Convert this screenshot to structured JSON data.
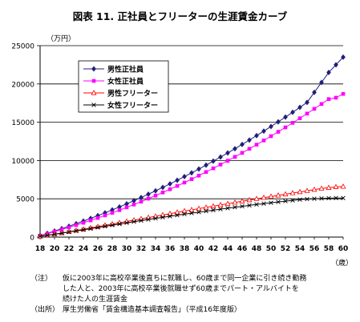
{
  "title": "図表 11.  正社員とフリーターの生涯賃金カーブ",
  "y_unit": "（万円）",
  "x_unit": "（歳）",
  "notes": {
    "label": "（注）",
    "line1": "仮に2003年に高校卒業後直ちに就職し、60歳まで同一企業に引き続き勤務",
    "line2": "した人と、2003年に高校卒業後就職せず60歳までパート・アルバイトを",
    "line3": "続けた人の生涯賃金",
    "source_label": "（出所）",
    "source": "厚生労働省「賃金構造基本調査報告」（平成16年度版）"
  },
  "chart_data": {
    "type": "line",
    "title": "図表 11.  正社員とフリーターの生涯賃金カーブ",
    "xlabel": "（歳）",
    "ylabel": "（万円）",
    "x": [
      18,
      19,
      20,
      21,
      22,
      23,
      24,
      25,
      26,
      27,
      28,
      29,
      30,
      31,
      32,
      33,
      34,
      35,
      36,
      37,
      38,
      39,
      40,
      41,
      42,
      43,
      44,
      45,
      46,
      47,
      48,
      49,
      50,
      51,
      52,
      53,
      54,
      55,
      56,
      57,
      58,
      59,
      60
    ],
    "xticks": [
      "18",
      "20",
      "22",
      "24",
      "26",
      "28",
      "30",
      "32",
      "34",
      "36",
      "38",
      "40",
      "42",
      "44",
      "46",
      "48",
      "50",
      "52",
      "54",
      "56",
      "58",
      "60"
    ],
    "ylim": [
      0,
      25000
    ],
    "yticks": [
      0,
      5000,
      10000,
      15000,
      20000,
      25000
    ],
    "grid": true,
    "legend_position": "top-left",
    "series": [
      {
        "name": "男性正社員",
        "color": "#1f1f7a",
        "marker": "diamond",
        "values": [
          200,
          490,
          790,
          1100,
          1420,
          1750,
          2090,
          2440,
          2800,
          3170,
          3550,
          3940,
          4340,
          4750,
          5170,
          5600,
          6040,
          6490,
          6950,
          7420,
          7900,
          8390,
          8890,
          9400,
          9920,
          10450,
          10990,
          11540,
          12100,
          12670,
          13250,
          13840,
          14440,
          15050,
          15670,
          16300,
          16940,
          17590,
          18900,
          20200,
          21500,
          22500,
          23500
        ]
      },
      {
        "name": "女性正社員",
        "color": "#ff00ff",
        "marker": "square",
        "values": [
          190,
          450,
          720,
          1000,
          1280,
          1570,
          1870,
          2180,
          2500,
          2830,
          3170,
          3520,
          3880,
          4250,
          4630,
          5020,
          5420,
          5830,
          6250,
          6680,
          7120,
          7570,
          8030,
          8500,
          8980,
          9470,
          9970,
          10480,
          11000,
          11530,
          12070,
          12620,
          13180,
          13750,
          14330,
          14920,
          15520,
          16130,
          16750,
          17380,
          18020,
          18200,
          18700
        ]
      },
      {
        "name": "男性フリーター",
        "color": "#ff0000",
        "marker": "triangle",
        "values": [
          100,
          240,
          390,
          540,
          700,
          860,
          1020,
          1190,
          1360,
          1530,
          1700,
          1870,
          2040,
          2210,
          2380,
          2550,
          2720,
          2890,
          3060,
          3230,
          3400,
          3560,
          3720,
          3880,
          4040,
          4200,
          4360,
          4520,
          4680,
          4840,
          5000,
          5150,
          5300,
          5450,
          5600,
          5750,
          5900,
          6050,
          6200,
          6350,
          6450,
          6550,
          6600
        ]
      },
      {
        "name": "女性フリーター",
        "color": "#000000",
        "marker": "cross",
        "values": [
          100,
          230,
          370,
          510,
          660,
          810,
          960,
          1110,
          1260,
          1410,
          1560,
          1710,
          1860,
          2010,
          2160,
          2300,
          2440,
          2580,
          2720,
          2860,
          3000,
          3130,
          3260,
          3390,
          3520,
          3650,
          3780,
          3900,
          4020,
          4140,
          4260,
          4370,
          4480,
          4590,
          4700,
          4800,
          4890,
          4960,
          5010,
          5050,
          5080,
          5100,
          5100
        ]
      }
    ]
  }
}
